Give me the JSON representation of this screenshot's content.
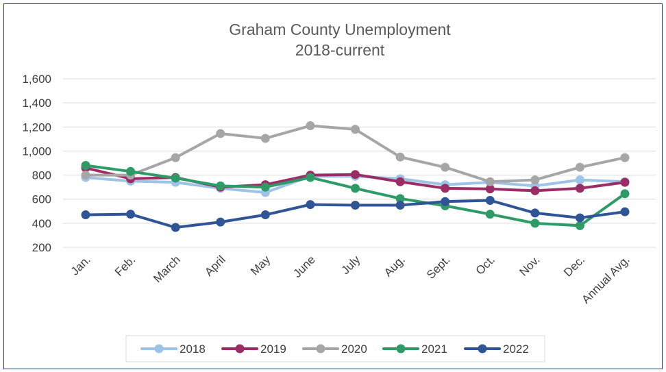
{
  "chart_data": {
    "type": "line",
    "title": "Graham County Unemployment",
    "subtitle": "2018-current",
    "xlabel": "",
    "ylabel": "",
    "categories": [
      "Jan.",
      "Feb.",
      "March",
      "April",
      "May",
      "June",
      "July",
      "Aug.",
      "Sept.",
      "Oct.",
      "Nov.",
      "Dec.",
      "Annual Avg."
    ],
    "ylim": [
      200,
      1600
    ],
    "yticks": [
      200,
      400,
      600,
      800,
      1000,
      1200,
      1400,
      1600
    ],
    "ytick_labels": [
      "200",
      "400",
      "600",
      "800",
      "1,000",
      "1,200",
      "1,400",
      "1,600"
    ],
    "grid": true,
    "legend_position": "bottom",
    "series": [
      {
        "name": "2018",
        "color": "#9dc3e6",
        "values": [
          780,
          750,
          740,
          690,
          655,
          790,
          790,
          770,
          720,
          740,
          710,
          760,
          745
        ]
      },
      {
        "name": "2019",
        "color": "#9b2d66",
        "values": [
          860,
          770,
          780,
          700,
          720,
          800,
          805,
          745,
          690,
          685,
          670,
          690,
          740
        ]
      },
      {
        "name": "2020",
        "color": "#a6a6a6",
        "values": [
          800,
          800,
          945,
          1145,
          1105,
          1210,
          1180,
          950,
          865,
          745,
          760,
          865,
          945
        ]
      },
      {
        "name": "2021",
        "color": "#2e9b67",
        "values": [
          880,
          830,
          775,
          710,
          700,
          780,
          690,
          605,
          545,
          475,
          400,
          380,
          645
        ]
      },
      {
        "name": "2022",
        "color": "#2f5597",
        "values": [
          470,
          475,
          365,
          410,
          470,
          555,
          550,
          550,
          580,
          590,
          485,
          445,
          495
        ]
      }
    ]
  }
}
